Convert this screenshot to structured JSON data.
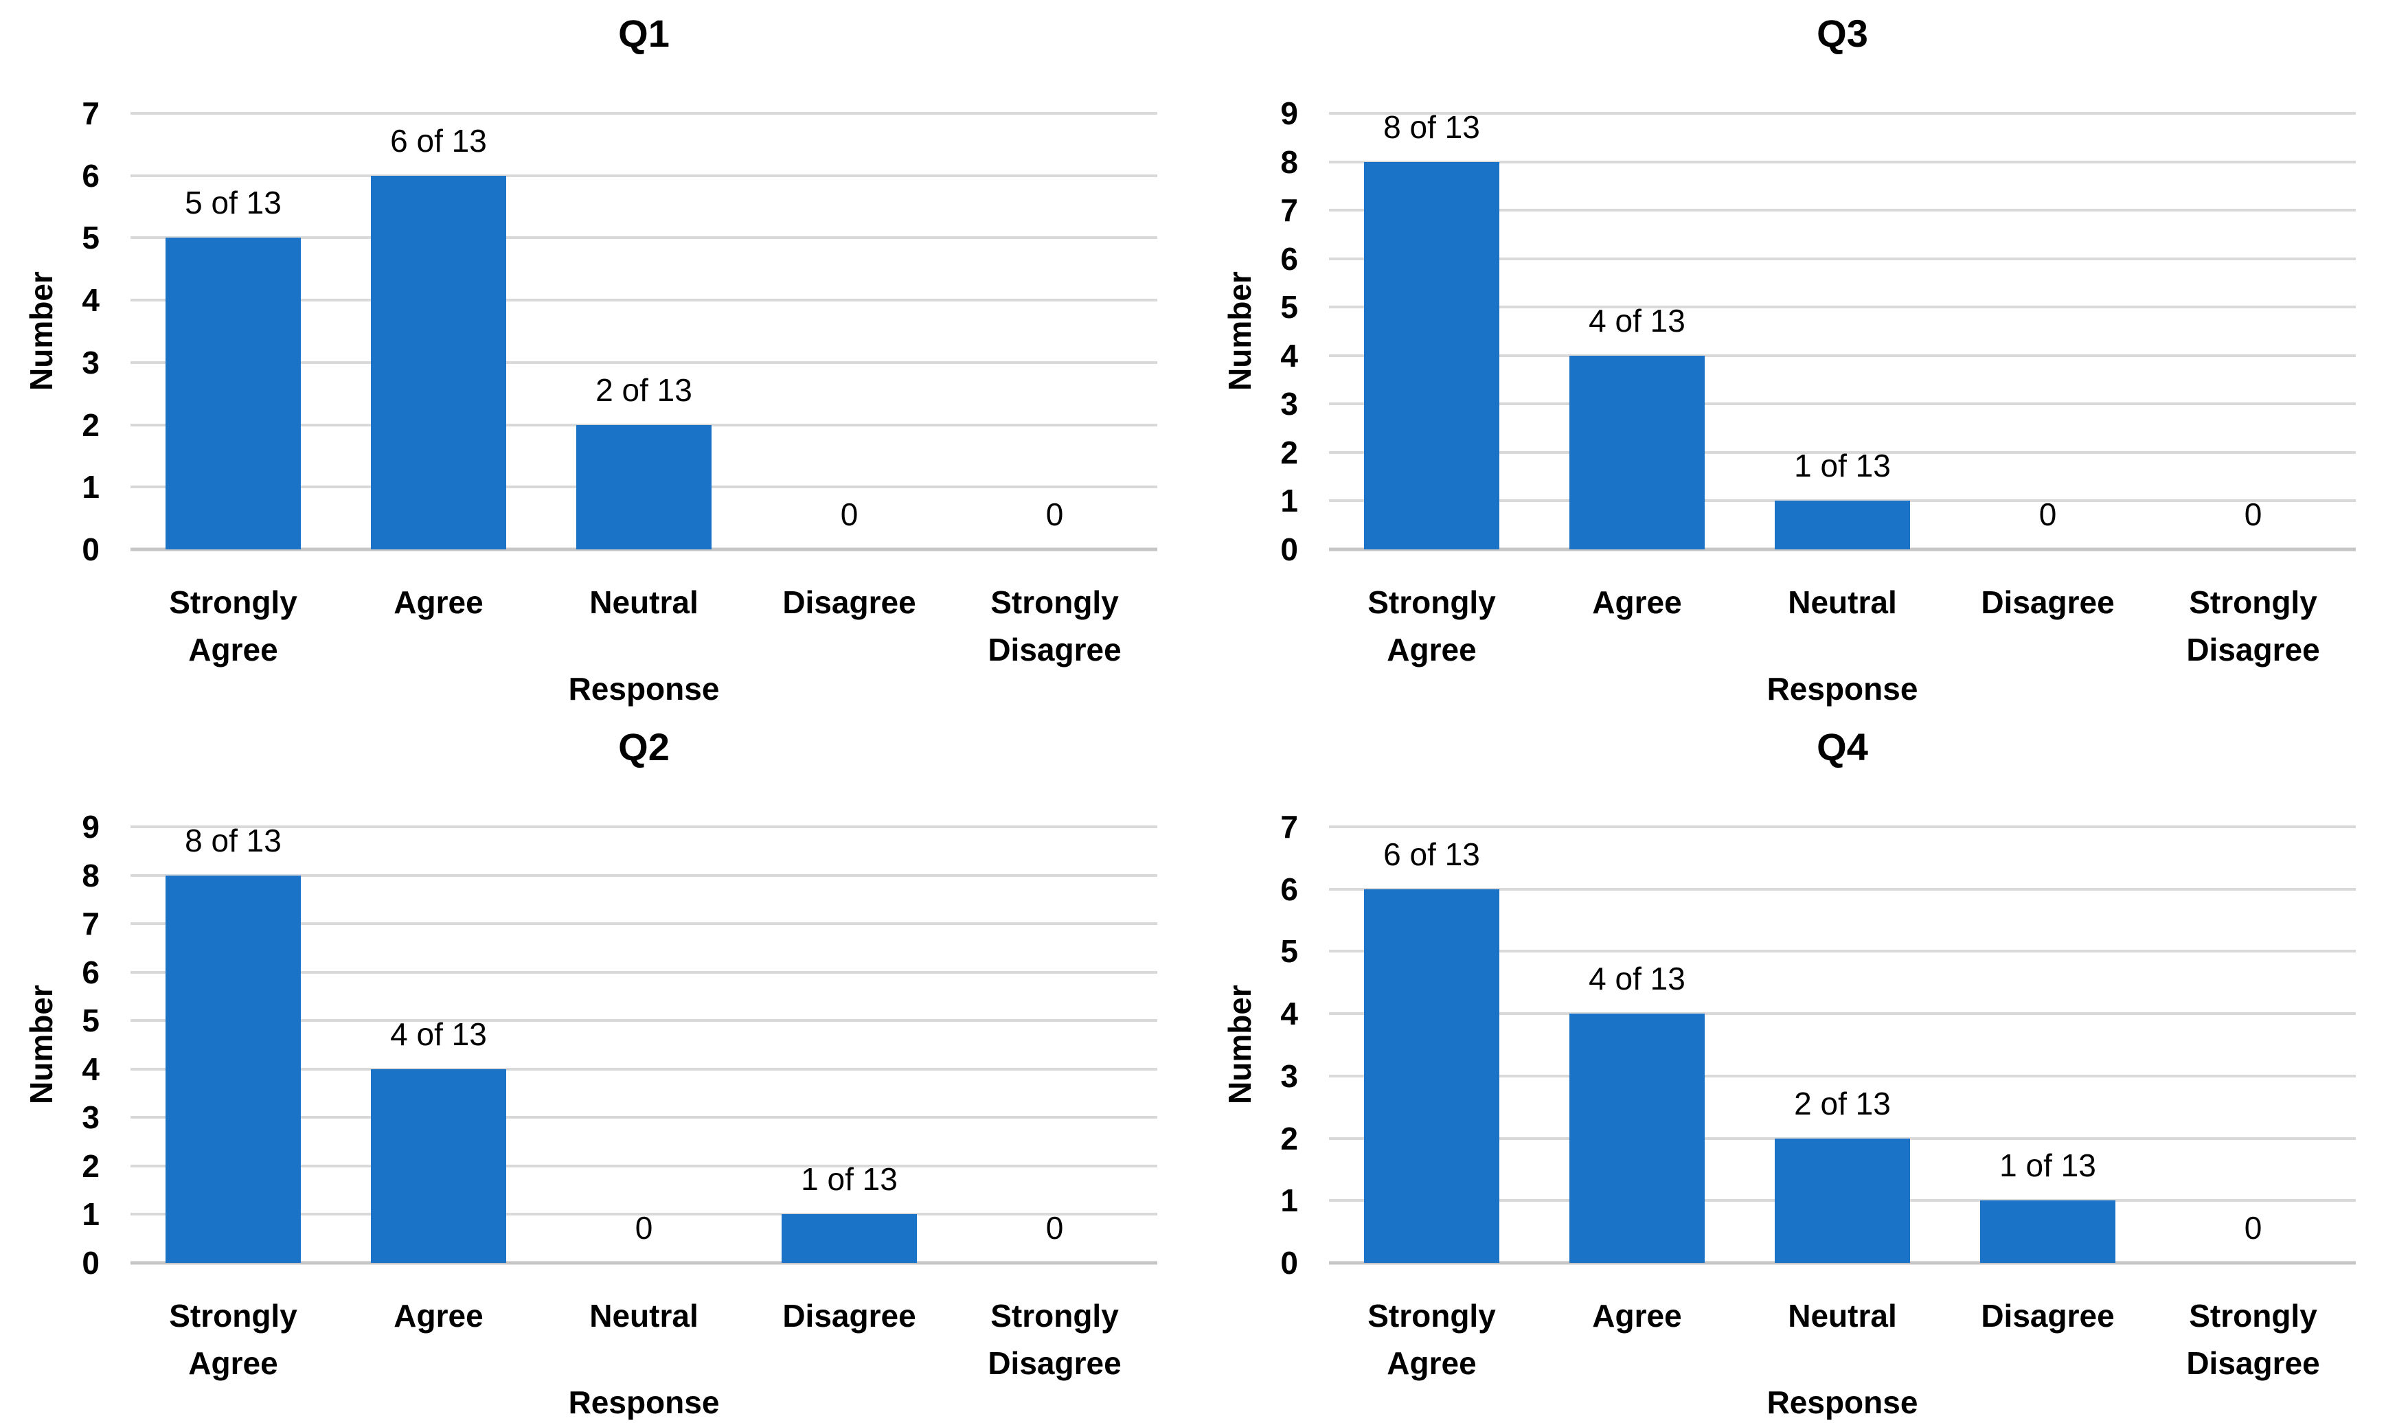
{
  "figure": {
    "background": "#ffffff",
    "bar_color": "#1B73C8",
    "gridline_color": "#D9D9D9",
    "axis_line_color": "#C6C6C6",
    "text_color": "#000000"
  },
  "chart_data": [
    {
      "type": "bar",
      "position": "top-left",
      "title": "Q1",
      "xlabel": "Response",
      "ylabel": "Number",
      "categories": [
        "Strongly Agree",
        "Agree",
        "Neutral",
        "Disagree",
        "Strongly Disagree"
      ],
      "values": [
        5,
        6,
        2,
        0,
        0
      ],
      "bar_labels": [
        "5 of 13",
        "6 of 13",
        "2 of 13",
        "0",
        "0"
      ],
      "ylim": [
        0,
        7
      ],
      "ytick_step": 1,
      "grid": true,
      "legend": "none"
    },
    {
      "type": "bar",
      "position": "top-right",
      "title": "Q3",
      "xlabel": "Response",
      "ylabel": "Number",
      "categories": [
        "Strongly Agree",
        "Agree",
        "Neutral",
        "Disagree",
        "Strongly Disagree"
      ],
      "values": [
        8,
        4,
        1,
        0,
        0
      ],
      "bar_labels": [
        "8 of 13",
        "4 of 13",
        "1 of 13",
        "0",
        "0"
      ],
      "ylim": [
        0,
        9
      ],
      "ytick_step": 1,
      "grid": true,
      "legend": "none"
    },
    {
      "type": "bar",
      "position": "bottom-left",
      "title": "Q2",
      "xlabel": "Response",
      "ylabel": "Number",
      "categories": [
        "Strongly Agree",
        "Agree",
        "Neutral",
        "Disagree",
        "Strongly Disagree"
      ],
      "values": [
        8,
        4,
        0,
        1,
        0
      ],
      "bar_labels": [
        "8 of 13",
        "4 of 13",
        "0",
        "1 of 13",
        "0"
      ],
      "ylim": [
        0,
        9
      ],
      "ytick_step": 1,
      "grid": true,
      "legend": "none"
    },
    {
      "type": "bar",
      "position": "bottom-right",
      "title": "Q4",
      "xlabel": "Response",
      "ylabel": "Number",
      "categories": [
        "Strongly Agree",
        "Agree",
        "Neutral",
        "Disagree",
        "Strongly Disagree"
      ],
      "values": [
        6,
        4,
        2,
        1,
        0
      ],
      "bar_labels": [
        "6 of 13",
        "4 of 13",
        "2 of 13",
        "1 of 13",
        "0"
      ],
      "ylim": [
        0,
        7
      ],
      "ytick_step": 1,
      "grid": true,
      "legend": "none"
    }
  ]
}
